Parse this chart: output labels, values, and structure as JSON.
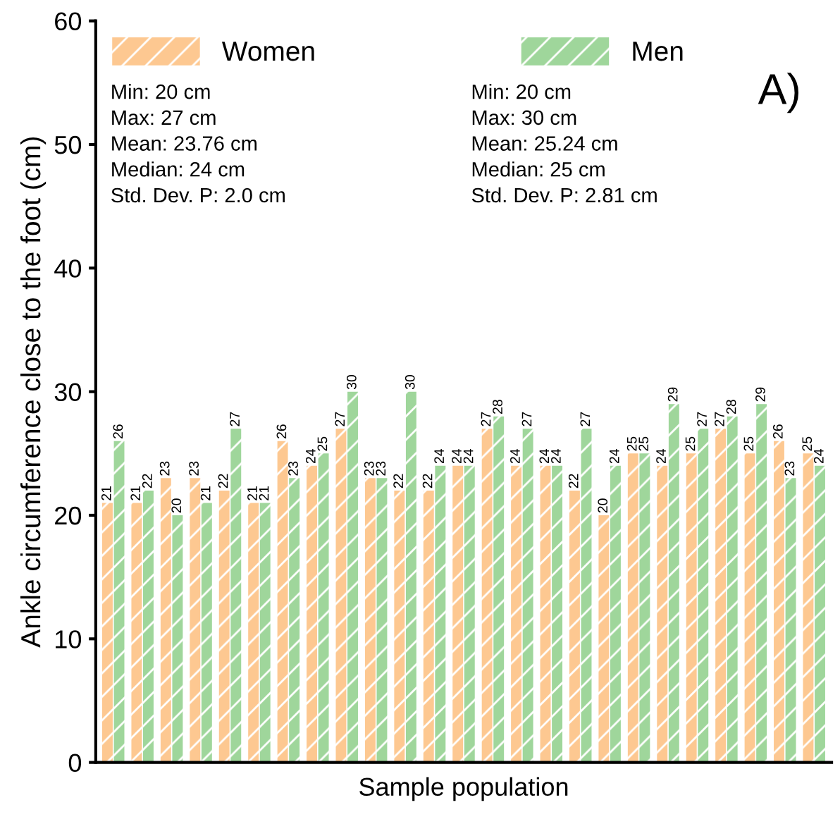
{
  "chart_data": {
    "type": "bar",
    "xlabel": "Sample population",
    "ylabel": "Ankle circumference close to the foot (cm)",
    "categories": [
      null,
      null,
      null,
      null,
      null,
      null,
      null,
      null,
      null,
      null,
      null,
      null,
      null,
      null,
      null,
      null,
      null,
      null,
      null,
      null,
      null,
      null,
      null,
      null,
      null
    ],
    "series": [
      {
        "name": "Women",
        "color": "#fdc891",
        "values": [
          21,
          21,
          23,
          23,
          22,
          21,
          26,
          24,
          27,
          23,
          22,
          22,
          24,
          27,
          24,
          24,
          22,
          20,
          25,
          24,
          25,
          27,
          25,
          26,
          25
        ]
      },
      {
        "name": "Men",
        "color": "#9fd69b",
        "values": [
          26,
          22,
          20,
          21,
          27,
          21,
          23,
          25,
          30,
          23,
          30,
          24,
          24,
          28,
          27,
          24,
          27,
          24,
          25,
          29,
          27,
          28,
          29,
          23,
          24
        ]
      }
    ],
    "ylim": [
      0,
      60
    ],
    "yticks": [
      0,
      10,
      20,
      30,
      40,
      50,
      60
    ],
    "grid": false,
    "legend": "top left",
    "data_labels": true,
    "annotations": [
      "Min: 20 cm\nMax: 27 cm\nMean: 23.76 cm\nMedian: 24 cm\nStd. Dev. P: 2.0 cm",
      "Min: 20 cm\nMax: 30 cm\nMean: 25.24 cm\nMedian: 25 cm\nStd. Dev. P: 2.81 cm",
      "A)"
    ]
  }
}
